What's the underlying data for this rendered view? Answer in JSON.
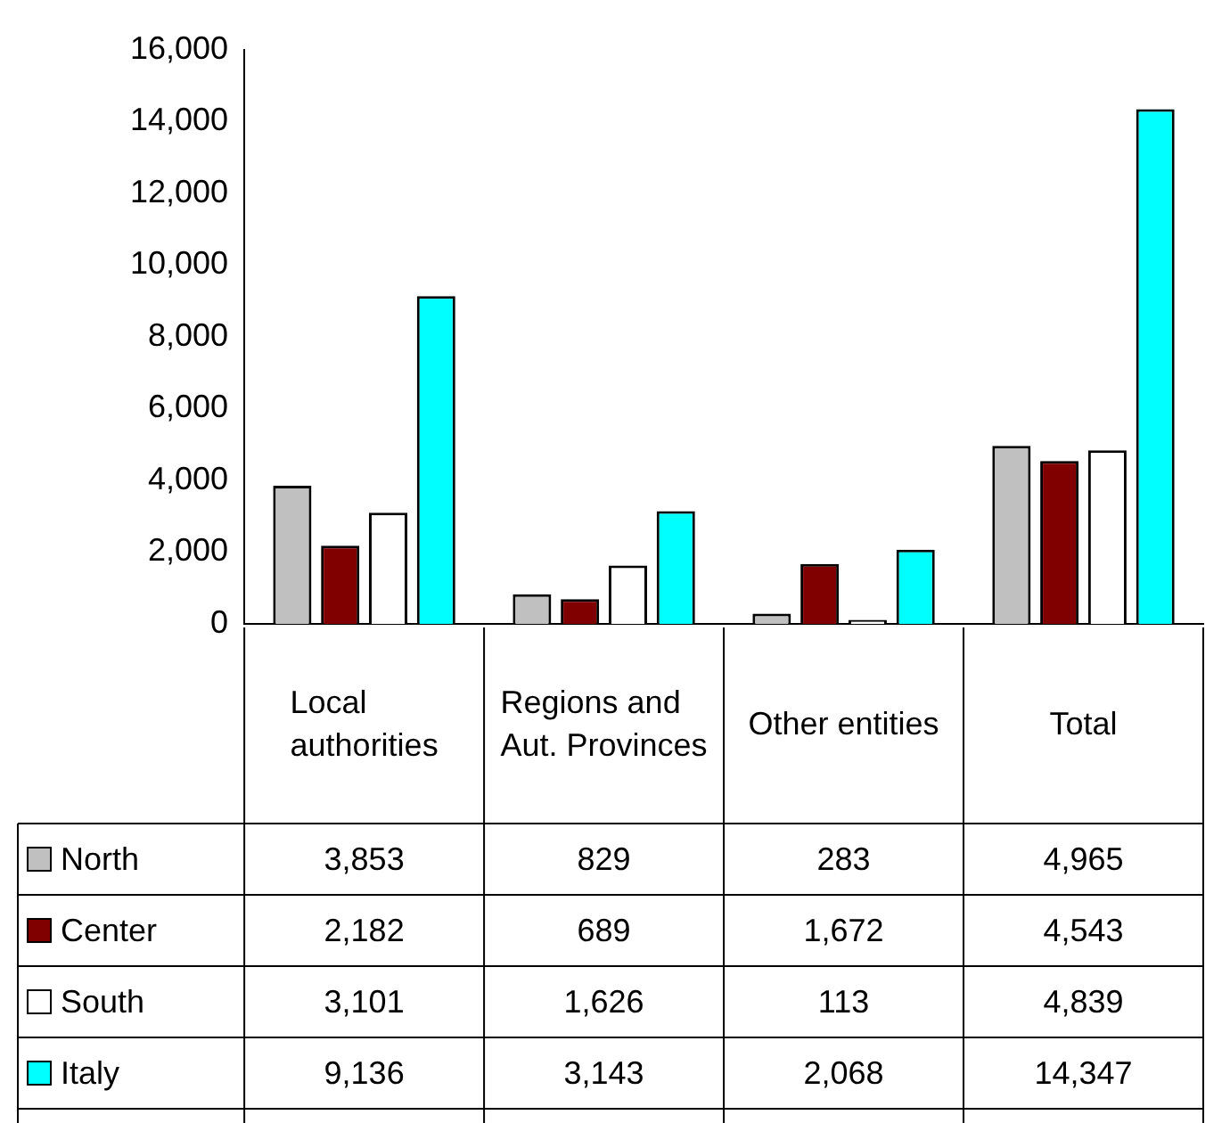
{
  "chart_data": {
    "type": "bar",
    "categories": [
      "Local authorities",
      "Regions and Aut. Provinces",
      "Other entities",
      "Total"
    ],
    "series": [
      {
        "name": "North",
        "color": "#c0c0c0",
        "values": [
          3853,
          829,
          283,
          4965
        ],
        "value_labels": [
          "3,853",
          "829",
          "283",
          "4,965"
        ]
      },
      {
        "name": "Center",
        "color": "#800000",
        "values": [
          2182,
          689,
          1672,
          4543
        ],
        "value_labels": [
          "2,182",
          "689",
          "1,672",
          "4,543"
        ]
      },
      {
        "name": "South",
        "color": "#ffffff",
        "values": [
          3101,
          1626,
          113,
          4839
        ],
        "value_labels": [
          "3,101",
          "1,626",
          "113",
          "4,839"
        ]
      },
      {
        "name": "Italy",
        "color": "#00ffff",
        "values": [
          9136,
          3143,
          2068,
          14347
        ],
        "value_labels": [
          "9,136",
          "3,143",
          "2,068",
          "14,347"
        ]
      }
    ],
    "ylim": [
      0,
      16000
    ],
    "yticks": [
      {
        "value": 0,
        "label": "0"
      },
      {
        "value": 2000,
        "label": "2,000"
      },
      {
        "value": 4000,
        "label": "4,000"
      },
      {
        "value": 6000,
        "label": "6,000"
      },
      {
        "value": 8000,
        "label": "8,000"
      },
      {
        "value": 10000,
        "label": "10,000"
      },
      {
        "value": 12000,
        "label": "12,000"
      },
      {
        "value": 14000,
        "label": "14,000"
      },
      {
        "value": 16000,
        "label": "16,000"
      }
    ],
    "grid": false,
    "legend": "bottom"
  }
}
